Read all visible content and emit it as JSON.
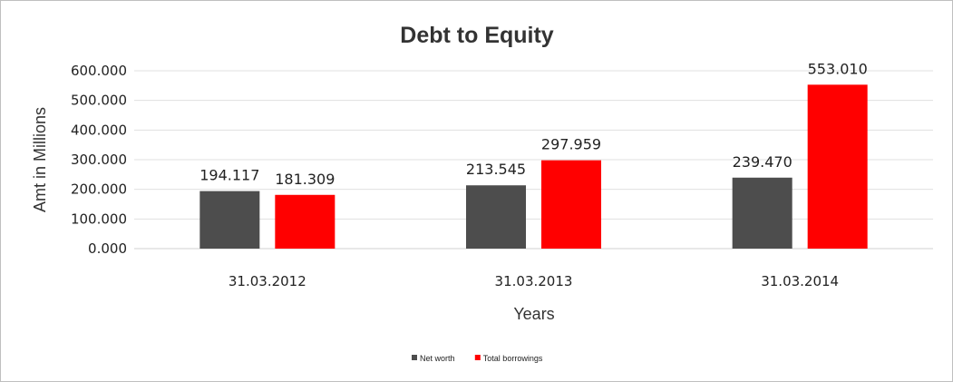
{
  "chart_data": {
    "type": "bar",
    "title": "Debt to Equity",
    "xlabel": "Years",
    "ylabel": "Amt in Millions",
    "categories": [
      "31.03.2012",
      "31.03.2013",
      "31.03.2014"
    ],
    "series": [
      {
        "name": "Net worth",
        "values": [
          194.117,
          213.545,
          239.47
        ],
        "labels": [
          "194.117",
          "213.545",
          "239.470"
        ],
        "color": "#4d4d4d"
      },
      {
        "name": "Total borrowings",
        "values": [
          181.309,
          297.959,
          553.01
        ],
        "labels": [
          "181.309",
          "297.959",
          "553.010"
        ],
        "color": "#ff0000"
      }
    ],
    "yticks": [
      "0.000",
      "100.000",
      "200.000",
      "300.000",
      "400.000",
      "500.000",
      "600.000"
    ],
    "ylim": [
      0,
      600
    ],
    "grid": true,
    "legend_position": "bottom"
  }
}
